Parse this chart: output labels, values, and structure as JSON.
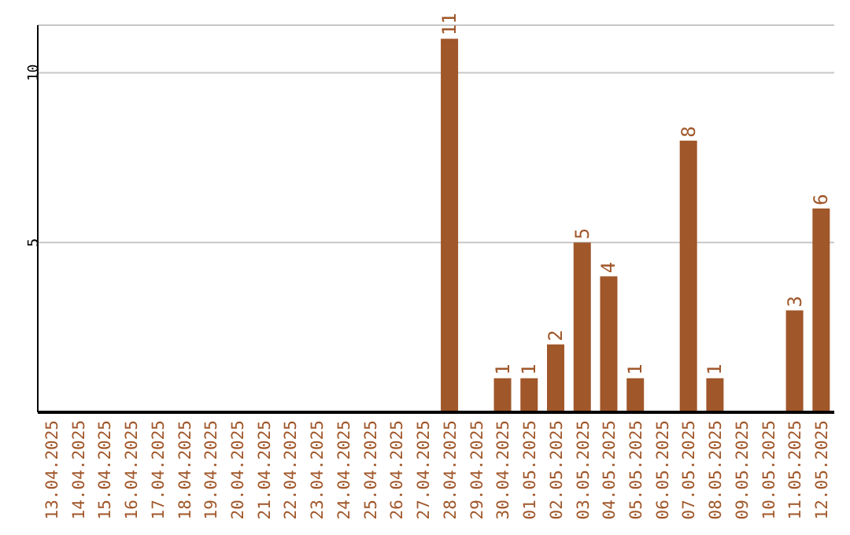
{
  "chart_data": {
    "type": "bar",
    "categories": [
      "13.04.2025",
      "14.04.2025",
      "15.04.2025",
      "16.04.2025",
      "17.04.2025",
      "18.04.2025",
      "19.04.2025",
      "20.04.2025",
      "21.04.2025",
      "22.04.2025",
      "23.04.2025",
      "24.04.2025",
      "25.04.2025",
      "26.04.2025",
      "27.04.2025",
      "28.04.2025",
      "29.04.2025",
      "30.04.2025",
      "01.05.2025",
      "02.05.2025",
      "03.05.2025",
      "04.05.2025",
      "05.05.2025",
      "06.05.2025",
      "07.05.2025",
      "08.05.2025",
      "09.05.2025",
      "10.05.2025",
      "11.05.2025",
      "12.05.2025"
    ],
    "values": [
      0,
      0,
      0,
      0,
      0,
      0,
      0,
      0,
      0,
      0,
      0,
      0,
      0,
      0,
      0,
      11,
      0,
      1,
      1,
      2,
      5,
      4,
      1,
      0,
      8,
      1,
      0,
      0,
      3,
      6
    ],
    "value_labels": [
      null,
      null,
      null,
      null,
      null,
      null,
      null,
      null,
      null,
      null,
      null,
      null,
      null,
      null,
      null,
      "11",
      null,
      "1",
      "1",
      "2",
      "5",
      "4",
      "1",
      null,
      "8",
      "1",
      null,
      null,
      "3",
      "6"
    ],
    "color": "#a0572a",
    "ylim": [
      0,
      11.4
    ],
    "yticks": [
      5,
      10
    ],
    "grid": "y"
  }
}
